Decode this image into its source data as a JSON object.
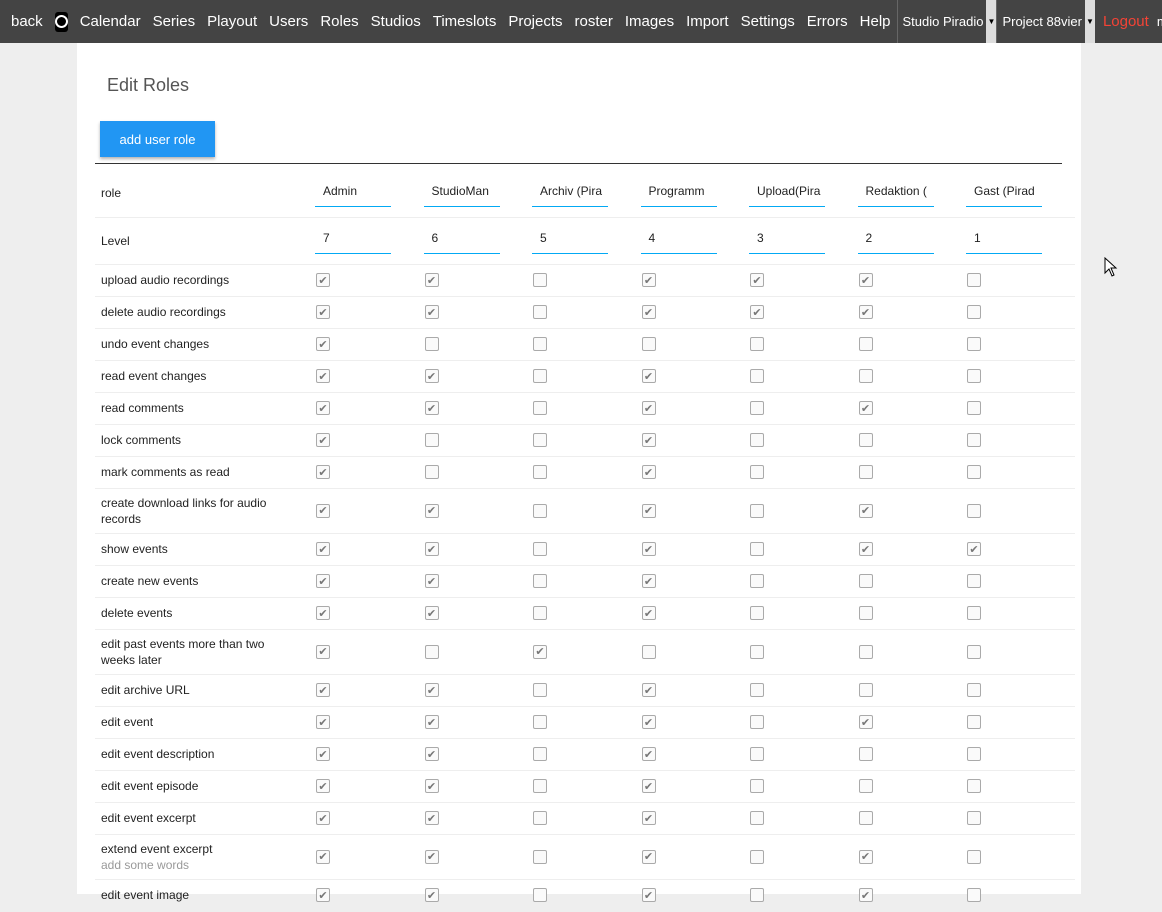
{
  "nav": {
    "items": [
      "back",
      "Calendar",
      "Series",
      "Playout",
      "Users",
      "Roles",
      "Studios",
      "Timeslots",
      "Projects",
      "roster",
      "Images",
      "Import",
      "Settings",
      "Errors",
      "Help"
    ],
    "studio": "Studio Piradio",
    "project": "Project 88vier",
    "logout": "Logout",
    "user": "milan"
  },
  "page": {
    "title": "Edit Roles",
    "add_button": "add user role",
    "role_label": "role",
    "level_label": "Level"
  },
  "roles": [
    "Admin",
    "StudioMan",
    "Archiv (Pira",
    "Programm",
    "Upload(Pira",
    "Redaktion (",
    "Gast (Pirad"
  ],
  "levels": [
    "7",
    "6",
    "5",
    "4",
    "3",
    "2",
    "1"
  ],
  "permissions": [
    {
      "label": "upload audio recordings",
      "values": [
        1,
        1,
        0,
        1,
        1,
        1,
        0
      ]
    },
    {
      "label": "delete audio recordings",
      "values": [
        1,
        1,
        0,
        1,
        1,
        1,
        0
      ]
    },
    {
      "label": "undo event changes",
      "values": [
        1,
        0,
        0,
        0,
        0,
        0,
        0
      ]
    },
    {
      "label": "read event changes",
      "values": [
        1,
        1,
        0,
        1,
        0,
        0,
        0
      ]
    },
    {
      "label": "read comments",
      "values": [
        1,
        1,
        0,
        1,
        0,
        1,
        0
      ]
    },
    {
      "label": "lock comments",
      "values": [
        1,
        0,
        0,
        1,
        0,
        0,
        0
      ]
    },
    {
      "label": "mark comments as read",
      "values": [
        1,
        0,
        0,
        1,
        0,
        0,
        0
      ]
    },
    {
      "label": "create download links for audio records",
      "values": [
        1,
        1,
        0,
        1,
        0,
        1,
        0
      ]
    },
    {
      "label": "show events",
      "values": [
        1,
        1,
        0,
        1,
        0,
        1,
        1
      ]
    },
    {
      "label": "create new events",
      "values": [
        1,
        1,
        0,
        1,
        0,
        0,
        0
      ]
    },
    {
      "label": "delete events",
      "values": [
        1,
        1,
        0,
        1,
        0,
        0,
        0
      ]
    },
    {
      "label": "edit past events more than two weeks later",
      "values": [
        1,
        0,
        1,
        0,
        0,
        0,
        0
      ]
    },
    {
      "label": "edit archive URL",
      "values": [
        1,
        1,
        0,
        1,
        0,
        0,
        0
      ]
    },
    {
      "label": "edit event",
      "values": [
        1,
        1,
        0,
        1,
        0,
        1,
        0
      ]
    },
    {
      "label": "edit event description",
      "values": [
        1,
        1,
        0,
        1,
        0,
        0,
        0
      ]
    },
    {
      "label": "edit event episode",
      "values": [
        1,
        1,
        0,
        1,
        0,
        0,
        0
      ]
    },
    {
      "label": "edit event excerpt",
      "values": [
        1,
        1,
        0,
        1,
        0,
        0,
        0
      ]
    },
    {
      "label": "extend event excerpt",
      "sub": "add some words",
      "values": [
        1,
        1,
        0,
        1,
        0,
        1,
        0
      ]
    },
    {
      "label": "edit event image",
      "values": [
        1,
        1,
        0,
        1,
        0,
        1,
        0
      ]
    }
  ],
  "colors": {
    "nav_bg": "#444444",
    "accent": "#2196f3",
    "underline": "#03a9f4",
    "logout": "#f44336"
  }
}
